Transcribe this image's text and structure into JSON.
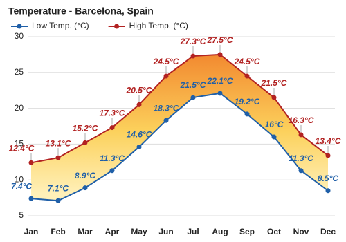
{
  "chart_data": {
    "type": "line",
    "title": "Temperature - Barcelona, Spain",
    "categories": [
      "Jan",
      "Feb",
      "Mar",
      "Apr",
      "May",
      "Jun",
      "Jul",
      "Aug",
      "Sep",
      "Oct",
      "Nov",
      "Dec"
    ],
    "series": [
      {
        "name": "Low Temp. (°C)",
        "color": "#1f5fa8",
        "values": [
          7.4,
          7.1,
          8.9,
          11.3,
          14.6,
          18.3,
          21.5,
          22.1,
          19.2,
          16,
          11.3,
          8.5
        ],
        "value_labels": [
          "7.4°C",
          "7.1°C",
          "8.9°C",
          "11.3°C",
          "14.6°C",
          "18.3°C",
          "21.5°C",
          "22.1°C",
          "19.2°C",
          "16°C",
          "11.3°C",
          "8.5°C"
        ]
      },
      {
        "name": "High Temp. (°C)",
        "color": "#b22222",
        "values": [
          12.4,
          13.1,
          15.2,
          17.3,
          20.5,
          24.5,
          27.3,
          27.5,
          24.5,
          21.5,
          16.3,
          13.4
        ],
        "value_labels": [
          "12.4°C",
          "13.1°C",
          "15.2°C",
          "17.3°C",
          "20.5°C",
          "24.5°C",
          "27.3°C",
          "27.5°C",
          "24.5°C",
          "21.5°C",
          "16.3°C",
          "13.4°C"
        ]
      }
    ],
    "ylim": [
      5,
      30
    ],
    "yticks": [
      5,
      10,
      15,
      20,
      25,
      30
    ],
    "grid": true,
    "legend": "top"
  }
}
